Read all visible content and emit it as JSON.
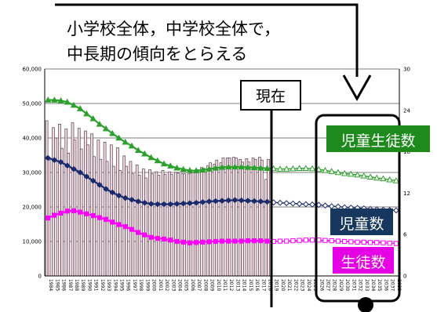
{
  "annotations": {
    "callout_line1": "小学校全体，中学校全体で，",
    "callout_line2": "中長期の傾向をとらえる",
    "now_label": "現在",
    "label_total": "児童生徒数",
    "label_children": "児童数",
    "label_students": "生徒数"
  },
  "colors": {
    "total": "#2ca02c",
    "total_label_bg": "#1e8a1e",
    "children": "#1a2a6e",
    "children_label_bg": "#17375e",
    "students": "#ff00ff",
    "students_label_bg": "#e600e6",
    "bar_fill": "#f2dfe6",
    "bar_stroke": "#5a3a4a"
  },
  "chart_data": {
    "type": "line",
    "x": [
      "1984",
      "1985",
      "1986",
      "1987",
      "1988",
      "1989",
      "1990",
      "1991",
      "1992",
      "1993",
      "1994",
      "1995",
      "1996",
      "1997",
      "1998",
      "1999",
      "2000",
      "2001",
      "2002",
      "2003",
      "2004",
      "2005",
      "2006",
      "2007",
      "2008",
      "2009",
      "2010",
      "2011",
      "2012",
      "2013",
      "2014",
      "2015",
      "2016",
      "2017",
      "2018",
      "2019",
      "2020",
      "2021",
      "2022",
      "2023",
      "2024",
      "2025",
      "2026",
      "2027",
      "2028",
      "2029",
      "2030",
      "2031",
      "2032",
      "2033",
      "2034",
      "2035",
      "2036",
      "2037",
      "2038"
    ],
    "y_left_ticks": [
      "0",
      "10,000",
      "20,000",
      "30,000",
      "40,000",
      "50,000",
      "60,000"
    ],
    "y_right_ticks": [
      "0",
      "6",
      "12",
      "18",
      "24",
      "30"
    ],
    "ylim_left": [
      0,
      60000
    ],
    "ylim_right": [
      0,
      30
    ],
    "actual_end_index": 34,
    "series": [
      {
        "key": "total",
        "values": [
          51000,
          51000,
          50800,
          50400,
          49500,
          48500,
          47000,
          45600,
          44000,
          42700,
          41300,
          40000,
          38800,
          37700,
          36400,
          35400,
          34300,
          33400,
          32500,
          31900,
          31300,
          30900,
          30600,
          30500,
          30700,
          31000,
          31300,
          31500,
          31600,
          31600,
          31600,
          31500,
          31400,
          31300,
          31200,
          31100,
          31000,
          31000,
          31100,
          31200,
          31200,
          31100,
          30900,
          30600,
          30300,
          30000,
          29700,
          29500,
          29300,
          29000,
          28700,
          28400,
          28200,
          27900,
          27600
        ]
      },
      {
        "key": "children",
        "values": [
          34200,
          33600,
          33000,
          32000,
          31000,
          30000,
          28800,
          27600,
          26400,
          25200,
          24200,
          23300,
          22600,
          22100,
          21600,
          21200,
          20900,
          20800,
          20800,
          20800,
          20900,
          21000,
          21100,
          21200,
          21400,
          21600,
          21700,
          21800,
          21900,
          22000,
          21900,
          21800,
          21700,
          21600,
          21500,
          21300,
          21200,
          21100,
          21000,
          20900,
          20800,
          20700,
          20600,
          20400,
          20200,
          20100,
          19900,
          19800,
          19700,
          19600,
          19400,
          19300,
          19200,
          19100,
          19000
        ]
      },
      {
        "key": "students",
        "values": [
          16800,
          17600,
          18200,
          18800,
          18900,
          18500,
          18000,
          17500,
          16900,
          16400,
          15600,
          14900,
          14300,
          13500,
          12600,
          11900,
          11200,
          10900,
          10700,
          10400,
          10000,
          9800,
          9600,
          9700,
          9800,
          9900,
          10000,
          10100,
          10100,
          10100,
          10100,
          10200,
          10200,
          10200,
          10100,
          10000,
          10100,
          10100,
          10200,
          10300,
          10400,
          10400,
          10400,
          10300,
          10200,
          10100,
          10000,
          9900,
          9800,
          9800,
          9700,
          9700,
          9600,
          9500,
          9400
        ]
      }
    ],
    "bars": {
      "start_index": 0,
      "values": [
        [
          22.5,
          16.8
        ],
        [
          21.5,
          20.0
        ],
        [
          22.0,
          18.5
        ],
        [
          21.3,
          17.8
        ],
        [
          22.2,
          19.7
        ],
        [
          21.4,
          18.4
        ],
        [
          21.0,
          19.0
        ],
        [
          20.6,
          17.3
        ],
        [
          19.7,
          16.9
        ],
        [
          19.4,
          16.6
        ],
        [
          19.0,
          15.9
        ],
        [
          18.6,
          15.3
        ],
        [
          17.4,
          15.9
        ],
        [
          16.6,
          14.8
        ],
        [
          16.1,
          14.6
        ],
        [
          15.5,
          14.2
        ],
        [
          15.4,
          14.8
        ],
        [
          15.1,
          14.6
        ],
        [
          15.3,
          14.7
        ],
        [
          15.1,
          14.7
        ],
        [
          15.0,
          14.9
        ],
        [
          14.8,
          14.8
        ],
        [
          14.8,
          14.9
        ],
        [
          15.3,
          15.4
        ],
        [
          15.7,
          15.6
        ],
        [
          16.0,
          16.4
        ],
        [
          16.2,
          16.8
        ],
        [
          16.4,
          17.1
        ],
        [
          17.1,
          17.1
        ],
        [
          17.2,
          17.1
        ],
        [
          16.9,
          16.5
        ],
        [
          17.0,
          16.5
        ],
        [
          17.1,
          16.9
        ],
        [
          17.2,
          16.8
        ],
        [
          14.0,
          16.9
        ]
      ]
    }
  }
}
